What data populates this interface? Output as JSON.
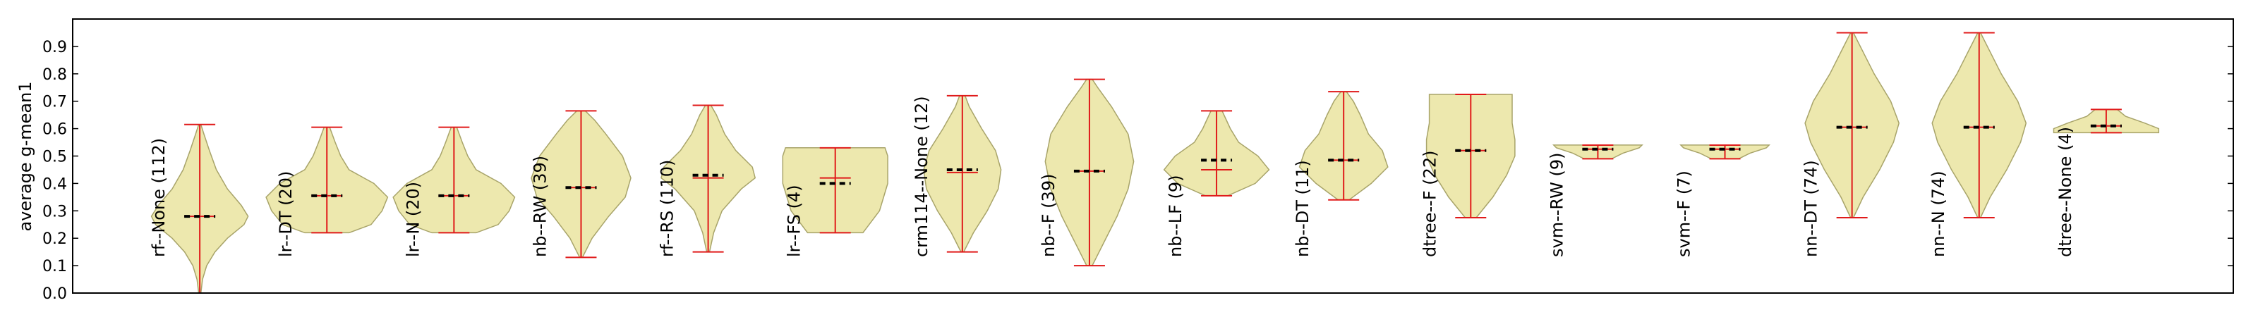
{
  "chart_data": {
    "type": "violin",
    "ylabel": "average g-mean1",
    "ylim": [
      0.0,
      1.0
    ],
    "yticks": [
      "0.0",
      "0.1",
      "0.2",
      "0.3",
      "0.4",
      "0.5",
      "0.6",
      "0.7",
      "0.8",
      "0.9"
    ],
    "grid": false,
    "colors": {
      "fill": "#ede8ae",
      "outline": "#a8a46a",
      "whisker": "#e01a1a",
      "mean_dash": "#000000"
    },
    "categories": [
      {
        "label": "rf--None (112)",
        "min": 0.0,
        "max": 0.615,
        "median": 0.28,
        "mean": 0.28,
        "shape": [
          [
            0.0,
            0.004
          ],
          [
            0.05,
            0.01
          ],
          [
            0.1,
            0.025
          ],
          [
            0.15,
            0.055
          ],
          [
            0.2,
            0.1
          ],
          [
            0.25,
            0.16
          ],
          [
            0.28,
            0.175
          ],
          [
            0.32,
            0.15
          ],
          [
            0.38,
            0.1
          ],
          [
            0.45,
            0.06
          ],
          [
            0.52,
            0.035
          ],
          [
            0.58,
            0.015
          ],
          [
            0.615,
            0.004
          ]
        ]
      },
      {
        "label": "lr--DT (20)",
        "min": 0.22,
        "max": 0.605,
        "median": 0.355,
        "mean": 0.355,
        "shape": [
          [
            0.22,
            0.08
          ],
          [
            0.25,
            0.16
          ],
          [
            0.3,
            0.2
          ],
          [
            0.35,
            0.22
          ],
          [
            0.4,
            0.17
          ],
          [
            0.45,
            0.08
          ],
          [
            0.5,
            0.05
          ],
          [
            0.55,
            0.03
          ],
          [
            0.605,
            0.01
          ]
        ]
      },
      {
        "label": "lr--N (20)",
        "min": 0.22,
        "max": 0.605,
        "median": 0.355,
        "mean": 0.355,
        "shape": [
          [
            0.22,
            0.08
          ],
          [
            0.25,
            0.16
          ],
          [
            0.3,
            0.2
          ],
          [
            0.35,
            0.22
          ],
          [
            0.4,
            0.17
          ],
          [
            0.45,
            0.08
          ],
          [
            0.5,
            0.05
          ],
          [
            0.55,
            0.03
          ],
          [
            0.605,
            0.01
          ]
        ]
      },
      {
        "label": "nb--RW (39)",
        "min": 0.13,
        "max": 0.665,
        "median": 0.385,
        "mean": 0.385,
        "shape": [
          [
            0.13,
            0.005
          ],
          [
            0.2,
            0.04
          ],
          [
            0.28,
            0.1
          ],
          [
            0.35,
            0.16
          ],
          [
            0.42,
            0.18
          ],
          [
            0.5,
            0.15
          ],
          [
            0.58,
            0.09
          ],
          [
            0.63,
            0.05
          ],
          [
            0.665,
            0.015
          ]
        ]
      },
      {
        "label": "rf--RS (110)",
        "min": 0.15,
        "max": 0.685,
        "median": 0.42,
        "mean": 0.43,
        "shape": [
          [
            0.15,
            0.005
          ],
          [
            0.22,
            0.02
          ],
          [
            0.3,
            0.05
          ],
          [
            0.38,
            0.12
          ],
          [
            0.42,
            0.17
          ],
          [
            0.46,
            0.16
          ],
          [
            0.52,
            0.1
          ],
          [
            0.58,
            0.06
          ],
          [
            0.65,
            0.03
          ],
          [
            0.685,
            0.01
          ]
        ]
      },
      {
        "label": "lr--FS (4)",
        "min": 0.22,
        "max": 0.53,
        "median": 0.42,
        "mean": 0.4,
        "shape": [
          [
            0.22,
            0.1
          ],
          [
            0.3,
            0.16
          ],
          [
            0.4,
            0.19
          ],
          [
            0.5,
            0.19
          ],
          [
            0.53,
            0.18
          ]
        ]
      },
      {
        "label": "crm114--None (12)",
        "min": 0.15,
        "max": 0.72,
        "median": 0.44,
        "mean": 0.45,
        "shape": [
          [
            0.15,
            0.005
          ],
          [
            0.22,
            0.04
          ],
          [
            0.3,
            0.09
          ],
          [
            0.38,
            0.13
          ],
          [
            0.45,
            0.14
          ],
          [
            0.52,
            0.12
          ],
          [
            0.6,
            0.07
          ],
          [
            0.68,
            0.025
          ],
          [
            0.72,
            0.01
          ]
        ]
      },
      {
        "label": "nb--F (39)",
        "min": 0.1,
        "max": 0.78,
        "median": 0.445,
        "mean": 0.445,
        "shape": [
          [
            0.1,
            0.01
          ],
          [
            0.18,
            0.05
          ],
          [
            0.28,
            0.1
          ],
          [
            0.38,
            0.14
          ],
          [
            0.48,
            0.16
          ],
          [
            0.58,
            0.14
          ],
          [
            0.68,
            0.08
          ],
          [
            0.75,
            0.03
          ],
          [
            0.78,
            0.01
          ]
        ]
      },
      {
        "label": "nb--LF (9)",
        "min": 0.355,
        "max": 0.665,
        "median": 0.45,
        "mean": 0.485,
        "shape": [
          [
            0.355,
            0.04
          ],
          [
            0.4,
            0.14
          ],
          [
            0.45,
            0.19
          ],
          [
            0.5,
            0.15
          ],
          [
            0.55,
            0.08
          ],
          [
            0.6,
            0.05
          ],
          [
            0.665,
            0.02
          ]
        ]
      },
      {
        "label": "nb--DT (11)",
        "min": 0.34,
        "max": 0.735,
        "median": 0.485,
        "mean": 0.485,
        "shape": [
          [
            0.34,
            0.02
          ],
          [
            0.4,
            0.1
          ],
          [
            0.46,
            0.16
          ],
          [
            0.52,
            0.14
          ],
          [
            0.58,
            0.09
          ],
          [
            0.65,
            0.06
          ],
          [
            0.7,
            0.035
          ],
          [
            0.735,
            0.01
          ]
        ]
      },
      {
        "label": "dtree--F (22)",
        "min": 0.275,
        "max": 0.725,
        "median": 0.52,
        "mean": 0.52,
        "shape": [
          [
            0.275,
            0.02
          ],
          [
            0.35,
            0.08
          ],
          [
            0.43,
            0.13
          ],
          [
            0.5,
            0.16
          ],
          [
            0.56,
            0.16
          ],
          [
            0.62,
            0.15
          ],
          [
            0.68,
            0.15
          ],
          [
            0.725,
            0.15
          ]
        ]
      },
      {
        "label": "svm--RW (9)",
        "min": 0.49,
        "max": 0.54,
        "median": 0.525,
        "mean": 0.525,
        "shape": [
          [
            0.49,
            0.05
          ],
          [
            0.51,
            0.09
          ],
          [
            0.53,
            0.15
          ],
          [
            0.54,
            0.16
          ]
        ]
      },
      {
        "label": "svm--F (7)",
        "min": 0.49,
        "max": 0.54,
        "median": 0.525,
        "mean": 0.525,
        "shape": [
          [
            0.49,
            0.05
          ],
          [
            0.51,
            0.09
          ],
          [
            0.53,
            0.15
          ],
          [
            0.54,
            0.16
          ]
        ]
      },
      {
        "label": "nn--DT (74)",
        "min": 0.275,
        "max": 0.95,
        "median": 0.605,
        "mean": 0.605,
        "shape": [
          [
            0.275,
            0.005
          ],
          [
            0.35,
            0.04
          ],
          [
            0.45,
            0.1
          ],
          [
            0.55,
            0.15
          ],
          [
            0.62,
            0.17
          ],
          [
            0.7,
            0.14
          ],
          [
            0.8,
            0.08
          ],
          [
            0.9,
            0.03
          ],
          [
            0.95,
            0.005
          ]
        ]
      },
      {
        "label": "nn--N (74)",
        "min": 0.275,
        "max": 0.95,
        "median": 0.605,
        "mean": 0.605,
        "shape": [
          [
            0.275,
            0.005
          ],
          [
            0.35,
            0.04
          ],
          [
            0.45,
            0.1
          ],
          [
            0.55,
            0.15
          ],
          [
            0.62,
            0.17
          ],
          [
            0.7,
            0.14
          ],
          [
            0.8,
            0.08
          ],
          [
            0.9,
            0.03
          ],
          [
            0.95,
            0.005
          ]
        ]
      },
      {
        "label": "dtree--None (4)",
        "min": 0.585,
        "max": 0.67,
        "median": 0.61,
        "mean": 0.61,
        "shape": [
          [
            0.585,
            0.19
          ],
          [
            0.6,
            0.19
          ],
          [
            0.62,
            0.14
          ],
          [
            0.645,
            0.07
          ],
          [
            0.67,
            0.04
          ]
        ]
      }
    ]
  }
}
